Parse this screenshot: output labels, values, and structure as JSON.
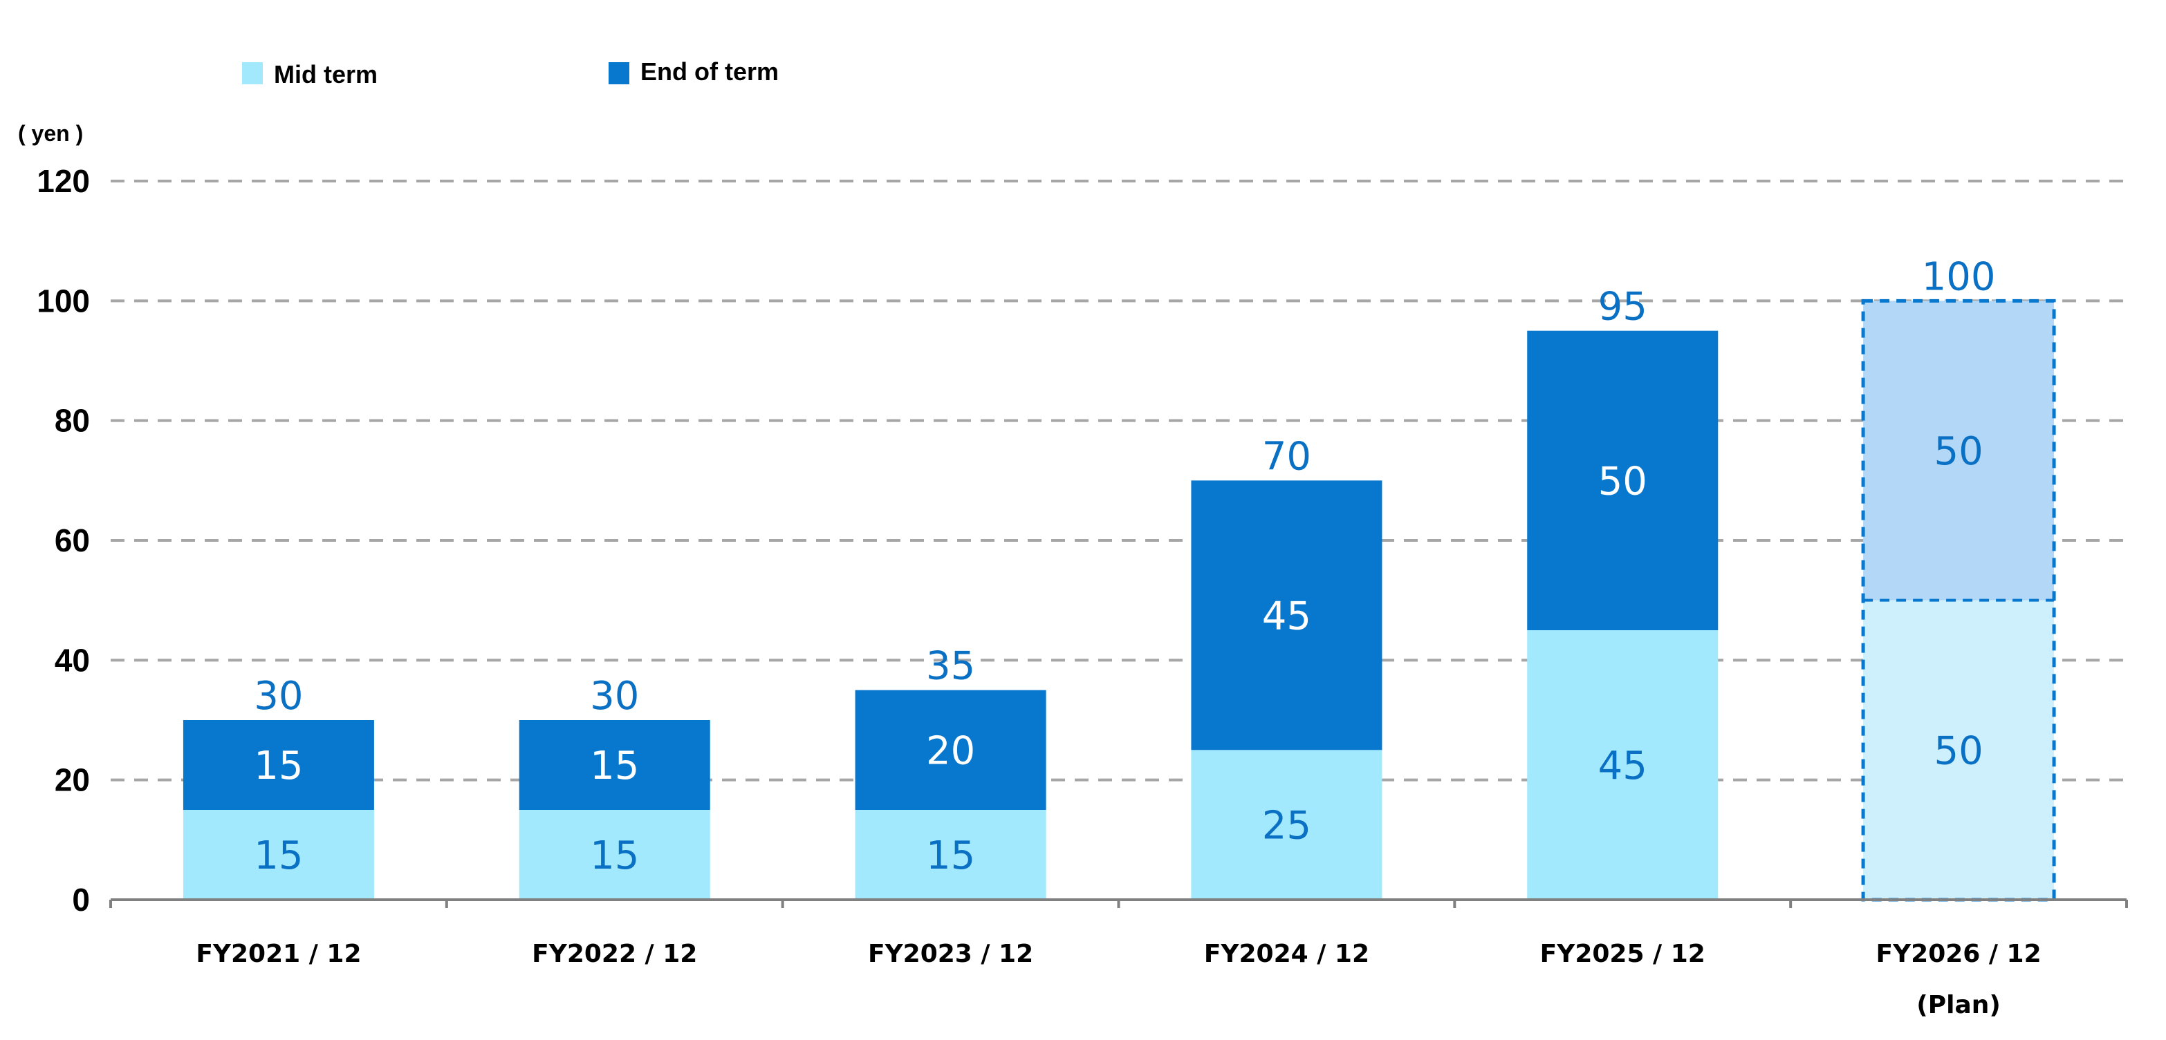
{
  "chart_data": {
    "type": "bar",
    "stacked": true,
    "title": "",
    "xlabel": "",
    "ylabel": "( yen )",
    "ylim": [
      0,
      120
    ],
    "yticks": [
      0,
      20,
      40,
      60,
      80,
      100,
      120
    ],
    "grid": true,
    "legend_position": "top",
    "categories": [
      "FY2021 / 12",
      "FY2022 / 12",
      "FY2023 / 12",
      "FY2024 / 12",
      "FY2025 / 12",
      "FY2026 / 12"
    ],
    "category_notes": [
      "",
      "",
      "",
      "",
      "",
      "(Plan)"
    ],
    "series": [
      {
        "name": "Mid term",
        "values": [
          15,
          15,
          15,
          25,
          45,
          50
        ],
        "color": "#a3e9fd",
        "plan_color": "#cdf0fc",
        "label_color": "#0a70c4"
      },
      {
        "name": "End of term",
        "values": [
          15,
          15,
          20,
          45,
          50,
          50
        ],
        "color": "#0878cf",
        "plan_color": "#b3d7f7",
        "label_color": "#ffffff",
        "plan_label_color": "#0a70c4"
      }
    ],
    "totals": [
      30,
      30,
      35,
      70,
      95,
      100
    ],
    "total_label_color": "#0a70c4",
    "plan_category_index": 5,
    "plan_border_color": "#0878cf"
  }
}
